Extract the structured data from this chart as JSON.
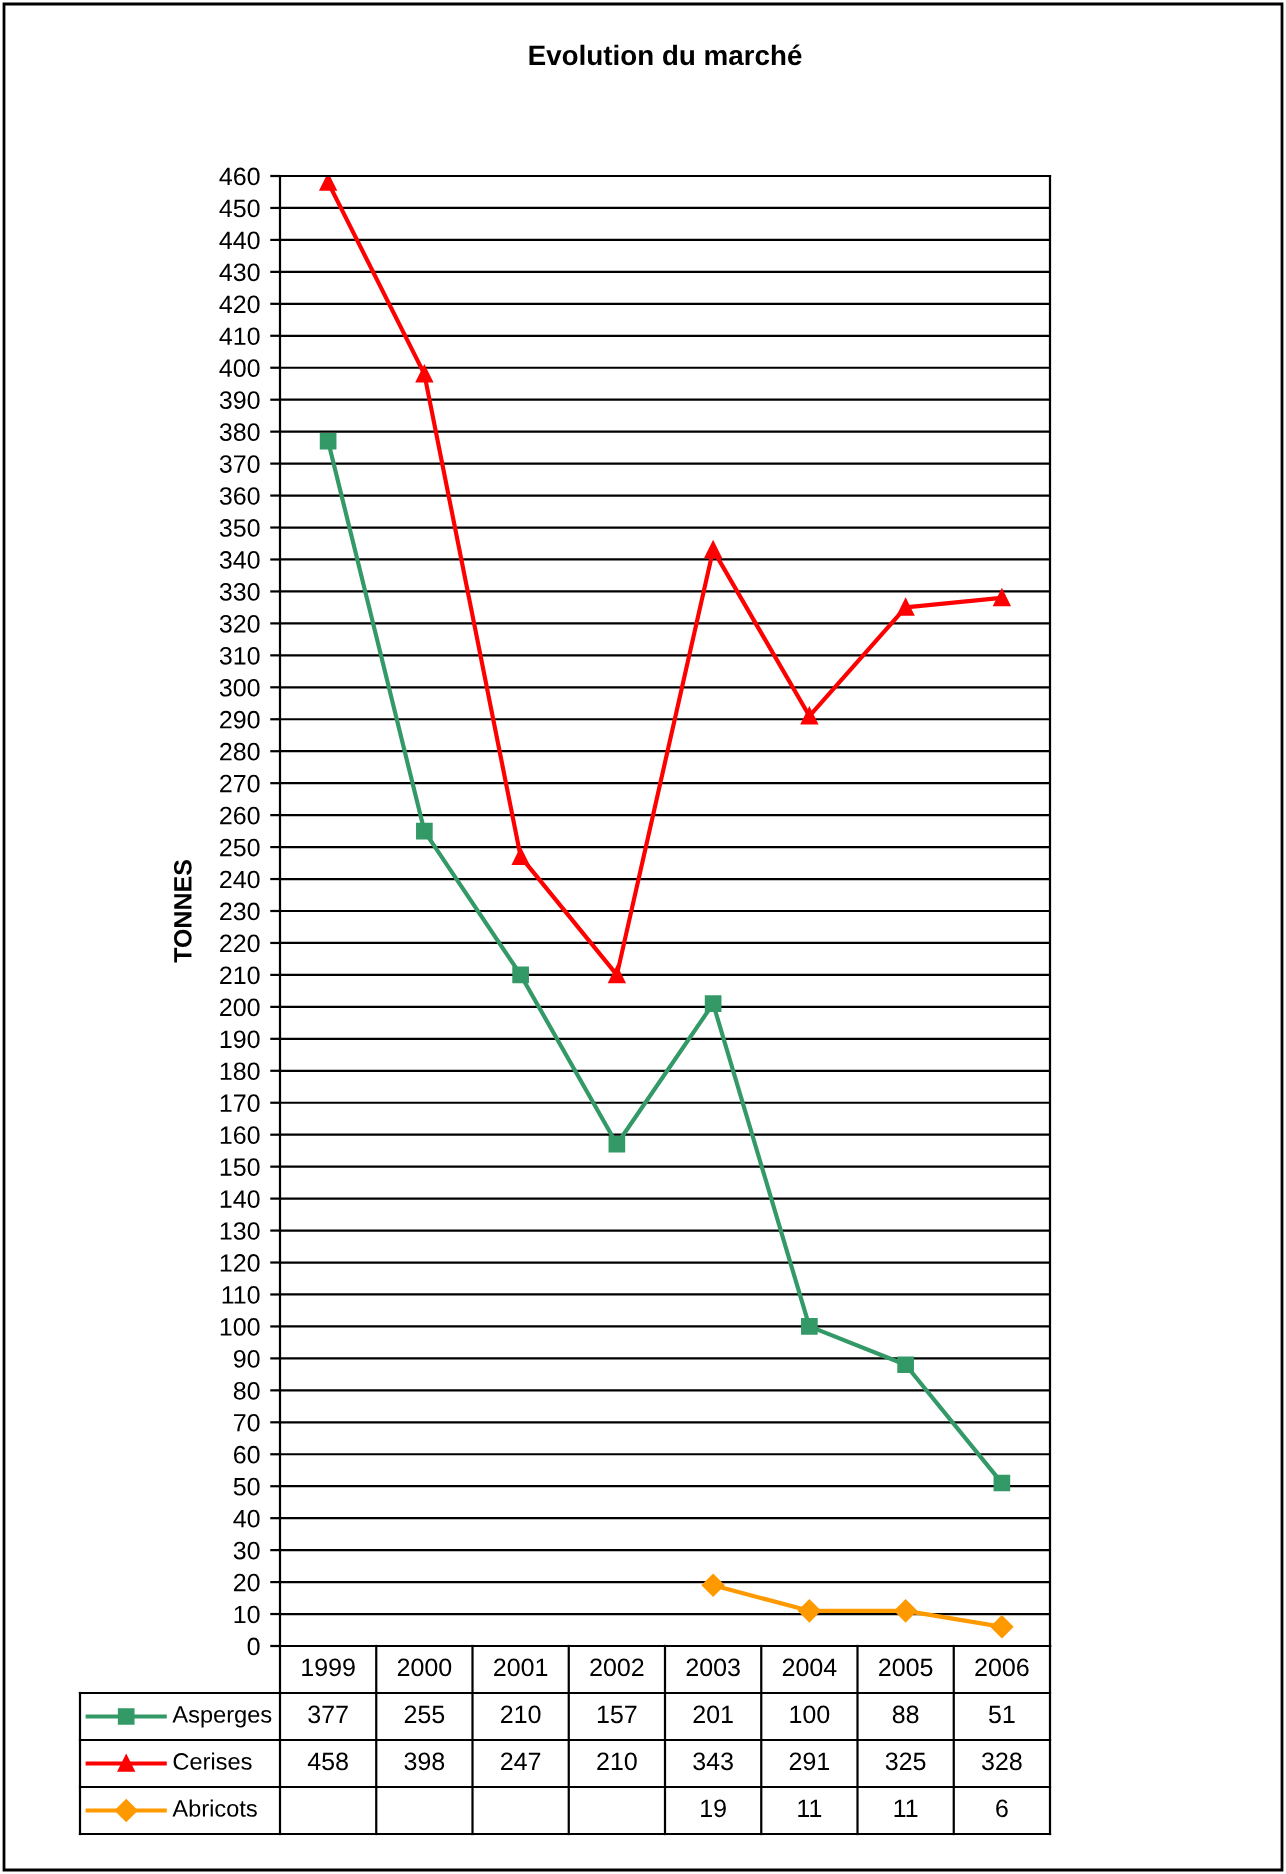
{
  "chart_data": {
    "type": "line",
    "title": "Evolution du marché",
    "ylabel": "TONNES",
    "categories": [
      "1999",
      "2000",
      "2001",
      "2002",
      "2003",
      "2004",
      "2005",
      "2006"
    ],
    "series": [
      {
        "name": "Asperges",
        "color": "#339966",
        "marker": "square",
        "values": [
          377,
          255,
          210,
          157,
          201,
          100,
          88,
          51
        ]
      },
      {
        "name": "Cerises",
        "color": "#ff0000",
        "marker": "triangle",
        "values": [
          458,
          398,
          247,
          210,
          343,
          291,
          325,
          328
        ]
      },
      {
        "name": "Abricots",
        "color": "#ff9900",
        "marker": "diamond",
        "values": [
          null,
          null,
          null,
          null,
          19,
          11,
          11,
          6
        ]
      }
    ],
    "ylim": [
      0,
      460
    ],
    "yticks": [
      0,
      10,
      20,
      30,
      40,
      50,
      60,
      70,
      80,
      90,
      100,
      110,
      120,
      130,
      140,
      150,
      160,
      170,
      180,
      190,
      200,
      210,
      220,
      230,
      240,
      250,
      260,
      270,
      280,
      290,
      300,
      310,
      320,
      330,
      340,
      350,
      360,
      370,
      380,
      390,
      400,
      410,
      420,
      430,
      440,
      450,
      460
    ],
    "grid": "y",
    "legend": "bottom",
    "data_labels": true,
    "line_style": "solid"
  }
}
